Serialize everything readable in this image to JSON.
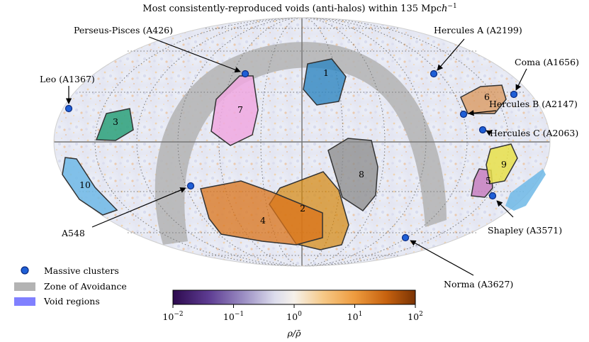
{
  "title": "Most consistently-reproduced voids (anti-halos) within 135 Mpc",
  "title_unit_suffix": "h",
  "title_unit_exp": "−1",
  "clusters": [
    {
      "id": "perseus",
      "label": "Perseus-Pisces (A426)"
    },
    {
      "id": "herculesA",
      "label": "Hercules A (A2199)"
    },
    {
      "id": "coma",
      "label": "Coma (A1656)"
    },
    {
      "id": "leo",
      "label": "Leo (A1367)"
    },
    {
      "id": "herculesB",
      "label": "Hercules B (A2147)"
    },
    {
      "id": "herculesC",
      "label": "Hercules C (A2063)"
    },
    {
      "id": "a548",
      "label": "A548"
    },
    {
      "id": "shapley",
      "label": "Shapley (A3571)"
    },
    {
      "id": "norma",
      "label": "Norma (A3627)"
    }
  ],
  "voids": [
    {
      "id": 1,
      "label": "1",
      "color": "#2e86c1"
    },
    {
      "id": 2,
      "label": "2",
      "color": "#d4860b"
    },
    {
      "id": 3,
      "label": "3",
      "color": "#2aa079"
    },
    {
      "id": 4,
      "label": "4",
      "color": "#d9731a"
    },
    {
      "id": 5,
      "label": "5",
      "color": "#c77fc0"
    },
    {
      "id": 6,
      "label": "6",
      "color": "#d9955a"
    },
    {
      "id": 7,
      "label": "7",
      "color": "#f0a8e0"
    },
    {
      "id": 8,
      "label": "8",
      "color": "#8a8a8a"
    },
    {
      "id": 9,
      "label": "9",
      "color": "#e8e04a"
    },
    {
      "id": 10,
      "label": "10",
      "color": "#6fb8e6"
    }
  ],
  "legend": {
    "clusters": "Massive clusters",
    "zoa": "Zone of Avoidance",
    "voids": "Void regions"
  },
  "colorbar": {
    "label": "ρ/ρ̄",
    "ticks": [
      "10",
      "10",
      "10",
      "10",
      "10"
    ],
    "exponents": [
      "−2",
      "−1",
      "0",
      "1",
      "2"
    ]
  },
  "colors": {
    "cluster_fill": "#1f5fd6",
    "zoa": "#b3b3b3",
    "void_legend": "#8080ff"
  }
}
